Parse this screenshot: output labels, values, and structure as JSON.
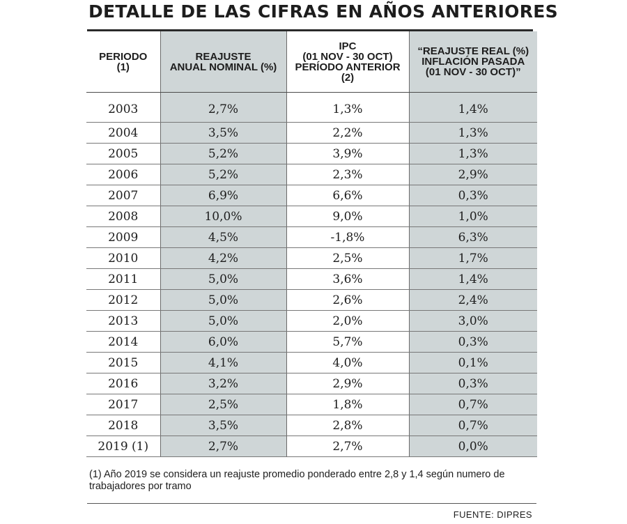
{
  "chart_data": {
    "type": "table",
    "title": "DETALLE DE LAS CIFRAS EN AÑOS ANTERIORES",
    "columns": [
      "PERIODO\n(1)",
      "REAJUSTE\nANUAL NOMINAL (%)",
      "IPC\n(01 NOV - 30 OCT)\nPERÍODO ANTERIOR\n(2)",
      "“REAJUSTE REAL (%)\nINFLACIÓN PASADA\n(01 NOV - 30 OCT)”"
    ],
    "rows": [
      [
        "2003",
        "2,7%",
        "1,3%",
        "1,4%"
      ],
      [
        "2004",
        "3,5%",
        "2,2%",
        "1,3%"
      ],
      [
        "2005",
        "5,2%",
        "3,9%",
        "1,3%"
      ],
      [
        "2006",
        "5,2%",
        "2,3%",
        "2,9%"
      ],
      [
        "2007",
        "6,9%",
        "6,6%",
        "0,3%"
      ],
      [
        "2008",
        "10,0%",
        "9,0%",
        "1,0%"
      ],
      [
        "2009",
        "4,5%",
        "-1,8%",
        "6,3%"
      ],
      [
        "2010",
        "4,2%",
        "2,5%",
        "1,7%"
      ],
      [
        "2011",
        "5,0%",
        "3,6%",
        "1,4%"
      ],
      [
        "2012",
        "5,0%",
        "2,6%",
        "2,4%"
      ],
      [
        "2013",
        "5,0%",
        "2,0%",
        "3,0%"
      ],
      [
        "2014",
        "6,0%",
        "5,7%",
        "0,3%"
      ],
      [
        "2015",
        "4,1%",
        "4,0%",
        "0,1%"
      ],
      [
        "2016",
        "3,2%",
        "2,9%",
        "0,3%"
      ],
      [
        "2017",
        "2,5%",
        "1,8%",
        "0,7%"
      ],
      [
        "2018",
        "3,5%",
        "2,8%",
        "0,7%"
      ],
      [
        "2019 (1)",
        "2,7%",
        "2,7%",
        "0,0%"
      ]
    ],
    "footnote": "(1) Año 2019 se considera un reajuste promedio ponderado entre 2,8 y 1,4 según numero de trabajadores por tramo",
    "source": "FUENTE: DIPRES",
    "shaded_color": "#cfd6d7"
  }
}
